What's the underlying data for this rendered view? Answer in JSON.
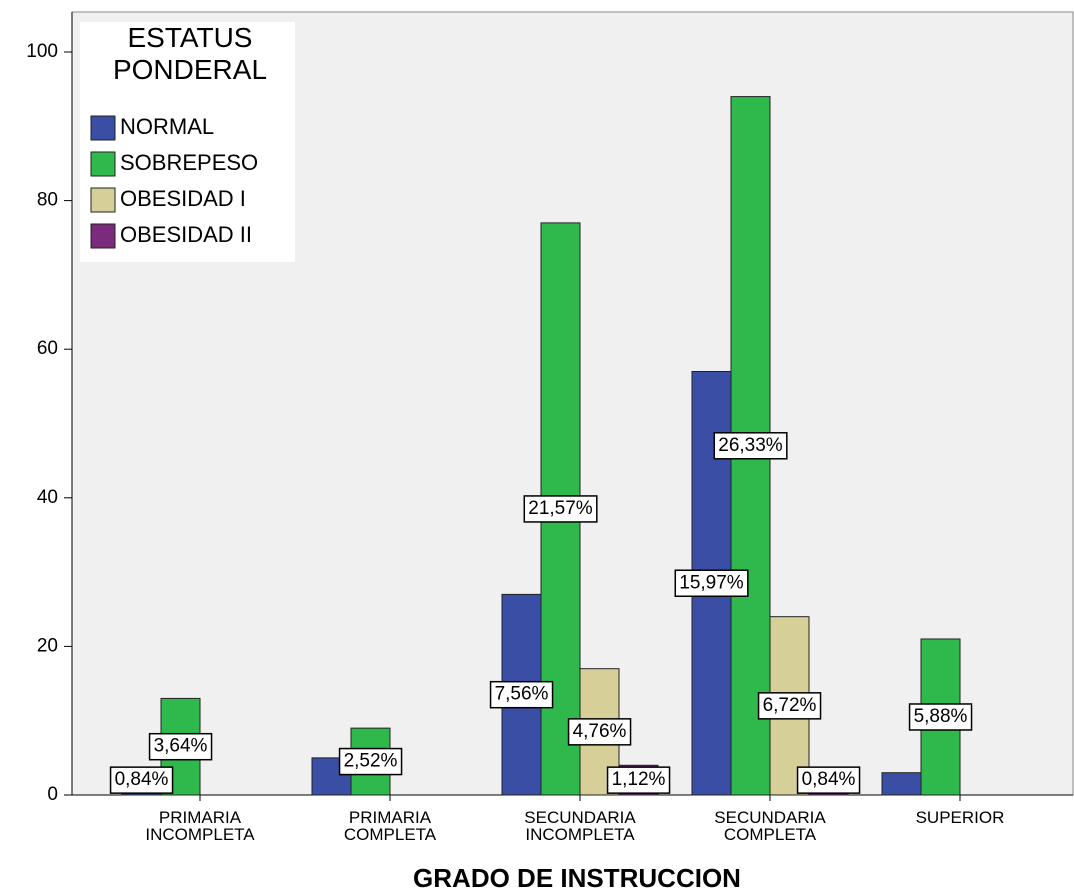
{
  "chart_data": {
    "type": "bar",
    "x_label": "GRADO DE INSTRUCCION",
    "legend_title": "ESTATUS PONDERAL",
    "legend": "top-left",
    "categories": [
      "PRIMARIA INCOMPLETA",
      "PRIMARIA COMPLETA",
      "SECUNDARIA INCOMPLETA",
      "SECUNDARIA COMPLETA",
      "SUPERIOR"
    ],
    "series": [
      {
        "name": "NORMAL",
        "color": "#3b4ea6",
        "values": [
          3,
          5,
          27,
          57,
          3
        ],
        "value_labels": [
          "0,84%",
          null,
          "7,56%",
          "15,97%",
          null
        ]
      },
      {
        "name": "SOBREPESO",
        "color": "#2fb84b",
        "values": [
          13,
          9,
          77,
          94,
          21
        ],
        "value_labels": [
          "3,64%",
          "2,52%",
          "21,57%",
          "26,33%",
          "5,88%"
        ]
      },
      {
        "name": "OBESIDAD I",
        "color": "#d6cf97",
        "values": [
          null,
          null,
          17,
          24,
          null
        ],
        "value_labels": [
          null,
          null,
          "4,76%",
          "6,72%",
          null
        ]
      },
      {
        "name": "OBESIDAD II",
        "color": "#7a2b7e",
        "values": [
          null,
          null,
          4,
          3,
          null
        ],
        "value_labels": [
          null,
          null,
          "1,12%",
          "0,84%",
          null
        ]
      }
    ],
    "ylim": [
      0,
      100
    ],
    "yticks": [
      0,
      20,
      40,
      60,
      80,
      100
    ],
    "grid": false
  }
}
